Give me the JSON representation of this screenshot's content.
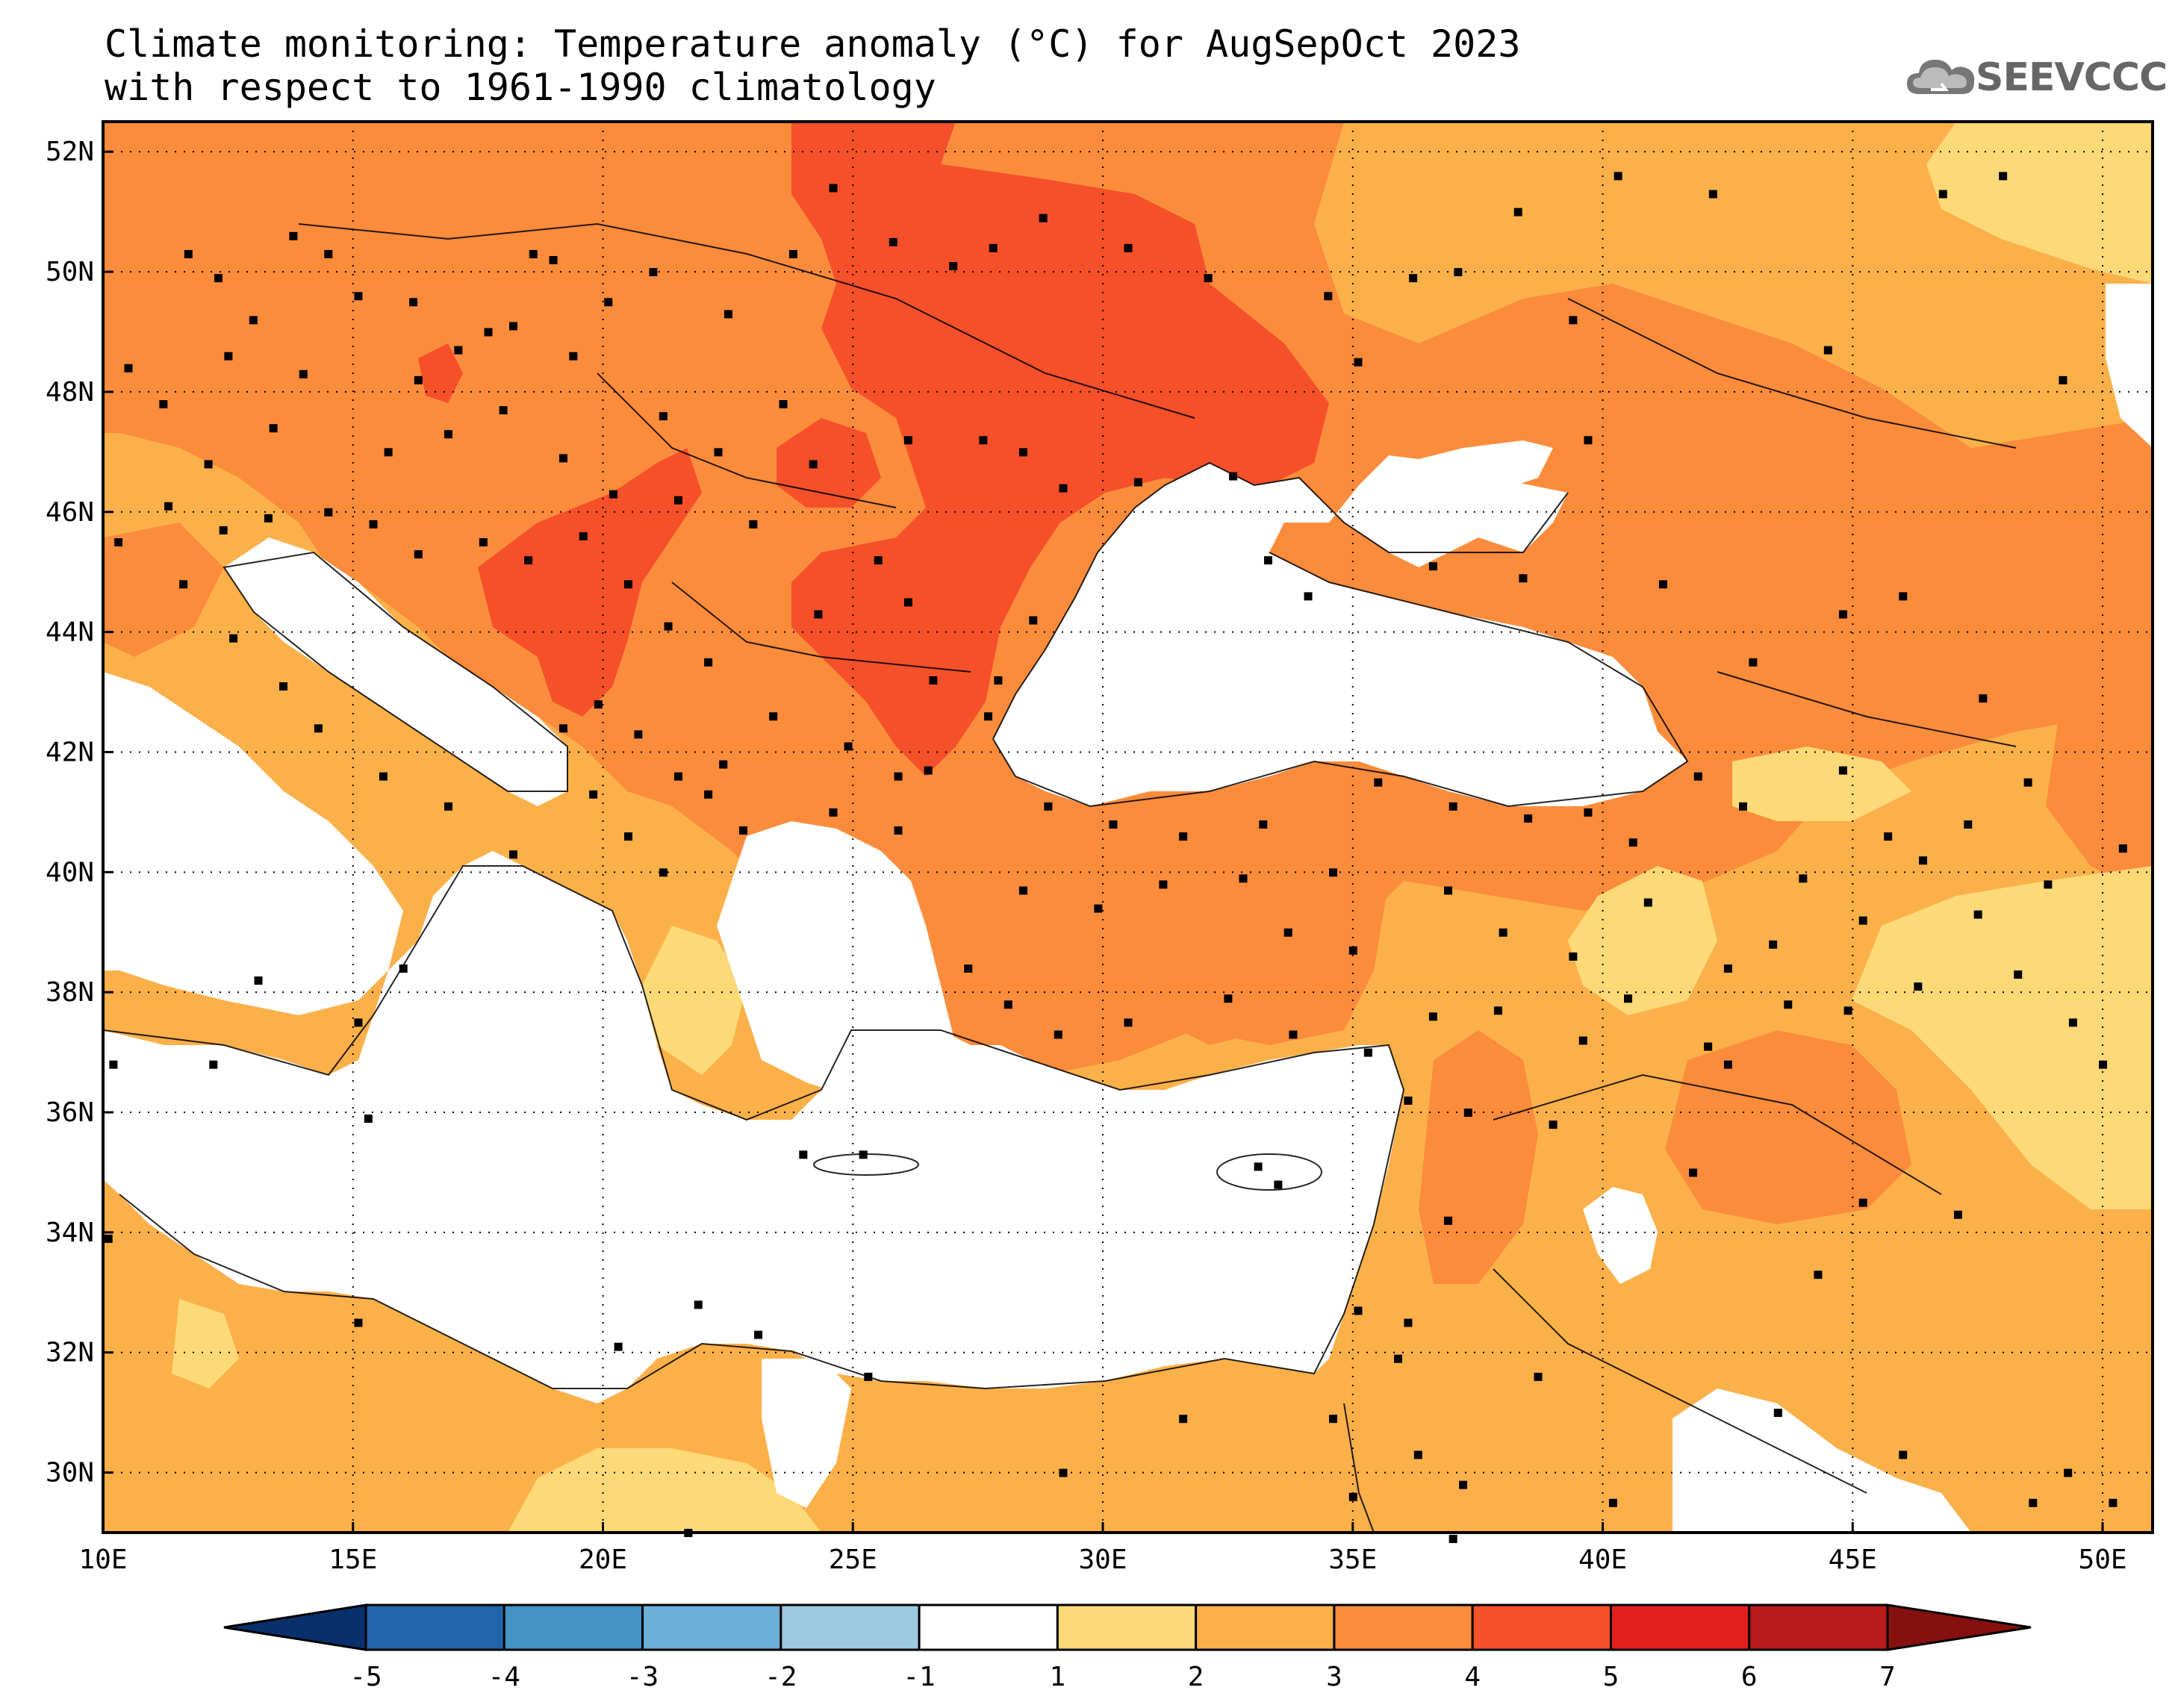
{
  "title": {
    "line1": "Climate monitoring: Temperature anomaly (°C) for AugSepOct 2023",
    "line2": "with respect to 1961-1990 climatology"
  },
  "logo": {
    "text": "SEEVCCC",
    "icon": "cloud-icon"
  },
  "map": {
    "lon_range": [
      10,
      51
    ],
    "lat_range": [
      29,
      52.5
    ],
    "lon_ticks": [
      {
        "value": 10,
        "label": "10E"
      },
      {
        "value": 15,
        "label": "15E"
      },
      {
        "value": 20,
        "label": "20E"
      },
      {
        "value": 25,
        "label": "25E"
      },
      {
        "value": 30,
        "label": "30E"
      },
      {
        "value": 35,
        "label": "35E"
      },
      {
        "value": 40,
        "label": "40E"
      },
      {
        "value": 45,
        "label": "45E"
      },
      {
        "value": 50,
        "label": "50E"
      }
    ],
    "lat_ticks": [
      {
        "value": 30,
        "label": "30N"
      },
      {
        "value": 32,
        "label": "32N"
      },
      {
        "value": 34,
        "label": "34N"
      },
      {
        "value": 36,
        "label": "36N"
      },
      {
        "value": 38,
        "label": "38N"
      },
      {
        "value": 40,
        "label": "40N"
      },
      {
        "value": 42,
        "label": "42N"
      },
      {
        "value": 44,
        "label": "44N"
      },
      {
        "value": 46,
        "label": "46N"
      },
      {
        "value": 48,
        "label": "48N"
      },
      {
        "value": 50,
        "label": "50N"
      },
      {
        "value": 52,
        "label": "52N"
      }
    ],
    "gridlines": "dotted"
  },
  "colorbar": {
    "labels": [
      "-5",
      "-4",
      "-3",
      "-2",
      "-1",
      "1",
      "2",
      "3",
      "4",
      "5",
      "6",
      "7"
    ],
    "colors": [
      "#08306b",
      "#2166ac",
      "#4393c3",
      "#6baed6",
      "#9ecae1",
      "#ffffff",
      "#fdd977",
      "#fcb04a",
      "#fb8c3c",
      "#f5502a",
      "#e1201e",
      "#b91a1a",
      "#861010"
    ]
  },
  "stations": [
    [
      10.5,
      48.4
    ],
    [
      11.2,
      47.8
    ],
    [
      12.5,
      48.6
    ],
    [
      13.0,
      49.2
    ],
    [
      14.0,
      48.3
    ],
    [
      15.1,
      49.6
    ],
    [
      16.3,
      48.2
    ],
    [
      17.1,
      48.7
    ],
    [
      18.2,
      49.1
    ],
    [
      19.0,
      50.2
    ],
    [
      20.1,
      49.5
    ],
    [
      21.0,
      50.0
    ],
    [
      22.5,
      49.3
    ],
    [
      23.8,
      50.3
    ],
    [
      24.6,
      51.4
    ],
    [
      25.8,
      50.5
    ],
    [
      27.0,
      50.1
    ],
    [
      27.8,
      50.4
    ],
    [
      28.8,
      50.9
    ],
    [
      30.5,
      50.4
    ],
    [
      32.1,
      49.9
    ],
    [
      34.5,
      49.6
    ],
    [
      35.1,
      48.5
    ],
    [
      36.2,
      49.9
    ],
    [
      37.1,
      50.0
    ],
    [
      38.3,
      51.0
    ],
    [
      39.4,
      49.2
    ],
    [
      40.3,
      51.6
    ],
    [
      42.2,
      51.3
    ],
    [
      44.5,
      48.7
    ],
    [
      46.8,
      51.3
    ],
    [
      48.0,
      51.6
    ],
    [
      49.2,
      48.2
    ],
    [
      11.7,
      50.3
    ],
    [
      12.3,
      49.9
    ],
    [
      13.8,
      50.6
    ],
    [
      14.5,
      50.3
    ],
    [
      16.2,
      49.5
    ],
    [
      17.7,
      49.0
    ],
    [
      18.6,
      50.3
    ],
    [
      19.4,
      48.6
    ],
    [
      21.2,
      47.6
    ],
    [
      22.3,
      47.0
    ],
    [
      23.6,
      47.8
    ],
    [
      24.2,
      46.8
    ],
    [
      25.5,
      45.2
    ],
    [
      26.1,
      47.2
    ],
    [
      27.6,
      47.2
    ],
    [
      28.4,
      47.0
    ],
    [
      29.2,
      46.4
    ],
    [
      30.7,
      46.5
    ],
    [
      32.6,
      46.6
    ],
    [
      33.3,
      45.2
    ],
    [
      34.1,
      44.6
    ],
    [
      36.6,
      45.1
    ],
    [
      38.4,
      44.9
    ],
    [
      39.7,
      47.2
    ],
    [
      41.2,
      44.8
    ],
    [
      43.0,
      43.5
    ],
    [
      44.8,
      44.3
    ],
    [
      46.0,
      44.6
    ],
    [
      47.6,
      42.9
    ],
    [
      48.5,
      41.5
    ],
    [
      50.4,
      40.4
    ],
    [
      11.3,
      46.1
    ],
    [
      12.4,
      45.7
    ],
    [
      13.3,
      45.9
    ],
    [
      14.5,
      46.0
    ],
    [
      15.4,
      45.8
    ],
    [
      16.3,
      45.3
    ],
    [
      17.6,
      45.5
    ],
    [
      18.5,
      45.2
    ],
    [
      19.6,
      45.6
    ],
    [
      20.5,
      44.8
    ],
    [
      21.3,
      44.1
    ],
    [
      22.1,
      43.5
    ],
    [
      23.4,
      42.6
    ],
    [
      24.9,
      42.1
    ],
    [
      25.9,
      41.6
    ],
    [
      27.7,
      42.6
    ],
    [
      26.6,
      43.2
    ],
    [
      27.9,
      43.2
    ],
    [
      28.6,
      44.2
    ],
    [
      26.1,
      44.5
    ],
    [
      24.3,
      44.3
    ],
    [
      23.0,
      45.8
    ],
    [
      21.5,
      46.2
    ],
    [
      20.2,
      46.3
    ],
    [
      19.2,
      46.9
    ],
    [
      18.0,
      47.7
    ],
    [
      16.9,
      47.3
    ],
    [
      15.7,
      47.0
    ],
    [
      13.4,
      47.4
    ],
    [
      12.1,
      46.8
    ],
    [
      10.3,
      45.5
    ],
    [
      11.6,
      44.8
    ],
    [
      12.6,
      43.9
    ],
    [
      13.6,
      43.1
    ],
    [
      14.3,
      42.4
    ],
    [
      15.6,
      41.6
    ],
    [
      16.9,
      41.1
    ],
    [
      18.2,
      40.3
    ],
    [
      16.0,
      38.4
    ],
    [
      15.1,
      37.5
    ],
    [
      13.1,
      38.2
    ],
    [
      12.2,
      36.8
    ],
    [
      15.3,
      35.9
    ],
    [
      10.2,
      36.8
    ],
    [
      10.1,
      33.9
    ],
    [
      15.1,
      32.5
    ],
    [
      20.3,
      32.1
    ],
    [
      23.1,
      32.3
    ],
    [
      19.2,
      42.4
    ],
    [
      19.9,
      42.8
    ],
    [
      20.7,
      42.3
    ],
    [
      21.5,
      41.6
    ],
    [
      22.1,
      41.3
    ],
    [
      22.8,
      40.7
    ],
    [
      22.4,
      41.8
    ],
    [
      21.2,
      40.0
    ],
    [
      20.5,
      40.6
    ],
    [
      19.8,
      41.3
    ],
    [
      24.6,
      41.0
    ],
    [
      25.9,
      40.7
    ],
    [
      26.5,
      41.7
    ],
    [
      28.9,
      41.1
    ],
    [
      30.2,
      40.8
    ],
    [
      31.6,
      40.6
    ],
    [
      33.2,
      40.8
    ],
    [
      34.6,
      40.0
    ],
    [
      35.5,
      41.5
    ],
    [
      37.0,
      41.1
    ],
    [
      38.5,
      40.9
    ],
    [
      39.7,
      41.0
    ],
    [
      40.6,
      40.5
    ],
    [
      41.9,
      41.6
    ],
    [
      42.8,
      41.1
    ],
    [
      44.8,
      41.7
    ],
    [
      45.7,
      40.6
    ],
    [
      46.4,
      40.2
    ],
    [
      47.3,
      40.8
    ],
    [
      48.9,
      39.8
    ],
    [
      27.3,
      38.4
    ],
    [
      28.1,
      37.8
    ],
    [
      29.1,
      37.3
    ],
    [
      30.5,
      37.5
    ],
    [
      32.5,
      37.9
    ],
    [
      33.8,
      37.3
    ],
    [
      35.3,
      37.0
    ],
    [
      36.1,
      36.2
    ],
    [
      36.6,
      37.6
    ],
    [
      37.9,
      37.7
    ],
    [
      39.6,
      37.2
    ],
    [
      40.5,
      37.9
    ],
    [
      42.1,
      37.1
    ],
    [
      43.7,
      37.8
    ],
    [
      44.9,
      37.7
    ],
    [
      46.3,
      38.1
    ],
    [
      48.3,
      38.3
    ],
    [
      28.4,
      39.7
    ],
    [
      29.9,
      39.4
    ],
    [
      31.2,
      39.8
    ],
    [
      32.8,
      39.9
    ],
    [
      33.7,
      39.0
    ],
    [
      35.0,
      38.7
    ],
    [
      36.9,
      39.7
    ],
    [
      38.0,
      39.0
    ],
    [
      39.4,
      38.6
    ],
    [
      40.9,
      39.5
    ],
    [
      42.5,
      38.4
    ],
    [
      43.4,
      38.8
    ],
    [
      44.0,
      39.9
    ],
    [
      45.2,
      39.2
    ],
    [
      47.5,
      39.3
    ],
    [
      49.4,
      37.5
    ],
    [
      50.0,
      36.8
    ],
    [
      35.1,
      32.7
    ],
    [
      35.9,
      31.9
    ],
    [
      36.1,
      32.5
    ],
    [
      36.9,
      34.2
    ],
    [
      37.3,
      36.0
    ],
    [
      39.0,
      35.8
    ],
    [
      41.8,
      35.0
    ],
    [
      42.5,
      36.8
    ],
    [
      44.3,
      33.3
    ],
    [
      45.2,
      34.5
    ],
    [
      47.1,
      34.3
    ],
    [
      50.2,
      29.5
    ],
    [
      49.3,
      30.0
    ],
    [
      48.6,
      29.5
    ],
    [
      46.0,
      30.3
    ],
    [
      43.5,
      31.0
    ],
    [
      38.7,
      31.6
    ],
    [
      36.3,
      30.3
    ],
    [
      34.6,
      30.9
    ],
    [
      31.6,
      30.9
    ],
    [
      29.2,
      30.0
    ],
    [
      25.3,
      31.6
    ],
    [
      21.9,
      32.8
    ],
    [
      24.0,
      35.3
    ],
    [
      25.2,
      35.3
    ],
    [
      33.1,
      35.1
    ],
    [
      33.5,
      34.8
    ],
    [
      35.0,
      29.6
    ],
    [
      37.2,
      29.8
    ],
    [
      40.2,
      29.5
    ],
    [
      21.7,
      29.0
    ],
    [
      37.0,
      28.9
    ]
  ]
}
